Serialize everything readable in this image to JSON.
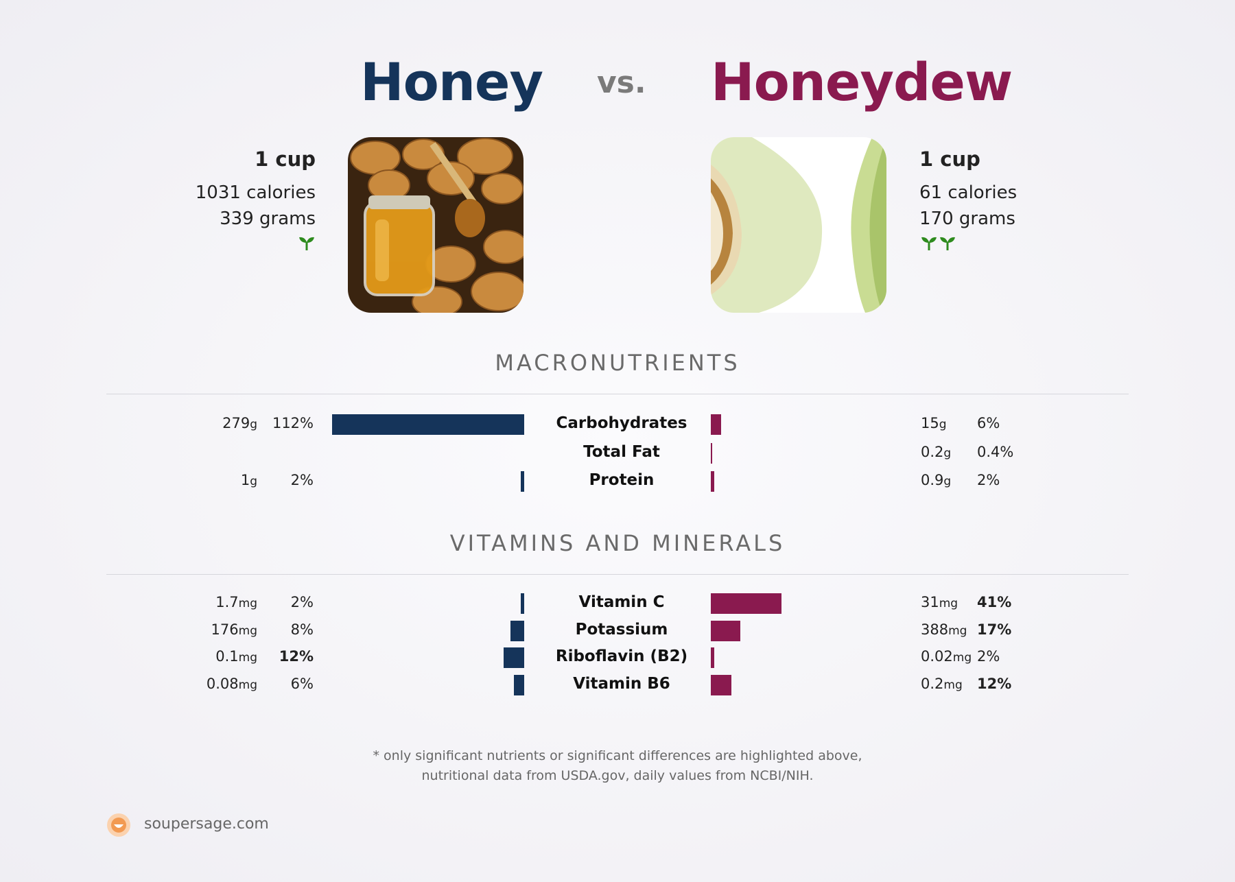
{
  "header": {
    "left_title": "Honey",
    "vs_label": "vs.",
    "right_title": "Honeydew"
  },
  "left_food": {
    "serving": "1 cup",
    "calories": "1031 calories",
    "grams": "339 grams",
    "sprout_count": 1,
    "image": "honey-photo"
  },
  "right_food": {
    "serving": "1 cup",
    "calories": "61 calories",
    "grams": "170 grams",
    "sprout_count": 2,
    "image": "honeydew-photo"
  },
  "sections": {
    "macros_title": "MACRONUTRIENTS",
    "vitamins_title": "VITAMINS AND MINERALS"
  },
  "colors": {
    "left": "#15345a",
    "right": "#8a1a4f",
    "sprout": "#2e8b1e"
  },
  "chart_data": {
    "type": "bar",
    "series": [
      {
        "name": "Honey"
      },
      {
        "name": "Honeydew"
      }
    ],
    "macronutrients": [
      {
        "name": "Carbohydrates",
        "left": {
          "amount": "279",
          "unit": "g",
          "pct": "112%",
          "pct_value": 112,
          "bold": false
        },
        "right": {
          "amount": "15",
          "unit": "g",
          "pct": "6%",
          "pct_value": 6,
          "bold": false
        }
      },
      {
        "name": "Total Fat",
        "left": {
          "amount": "",
          "unit": "",
          "pct": "",
          "pct_value": 0,
          "bold": false
        },
        "right": {
          "amount": "0.2",
          "unit": "g",
          "pct": "0.4%",
          "pct_value": 0.4,
          "bold": false
        }
      },
      {
        "name": "Protein",
        "left": {
          "amount": "1",
          "unit": "g",
          "pct": "2%",
          "pct_value": 2,
          "bold": false
        },
        "right": {
          "amount": "0.9",
          "unit": "g",
          "pct": "2%",
          "pct_value": 2,
          "bold": false
        }
      }
    ],
    "vitamins": [
      {
        "name": "Vitamin C",
        "left": {
          "amount": "1.7",
          "unit": "mg",
          "pct": "2%",
          "pct_value": 2,
          "bold": false
        },
        "right": {
          "amount": "31",
          "unit": "mg",
          "pct": "41%",
          "pct_value": 41,
          "bold": true
        }
      },
      {
        "name": "Potassium",
        "left": {
          "amount": "176",
          "unit": "mg",
          "pct": "8%",
          "pct_value": 8,
          "bold": false
        },
        "right": {
          "amount": "388",
          "unit": "mg",
          "pct": "17%",
          "pct_value": 17,
          "bold": true
        }
      },
      {
        "name": "Riboflavin (B2)",
        "left": {
          "amount": "0.1",
          "unit": "mg",
          "pct": "12%",
          "pct_value": 12,
          "bold": true
        },
        "right": {
          "amount": "0.02",
          "unit": "mg",
          "pct": "2%",
          "pct_value": 2,
          "bold": false
        }
      },
      {
        "name": "Vitamin B6",
        "left": {
          "amount": "0.08",
          "unit": "mg",
          "pct": "6%",
          "pct_value": 6,
          "bold": false
        },
        "right": {
          "amount": "0.2",
          "unit": "mg",
          "pct": "12%",
          "pct_value": 12,
          "bold": true
        }
      }
    ]
  },
  "footer": {
    "note_line1": "* only significant nutrients or significant differences are highlighted above,",
    "note_line2": "nutritional data from USDA.gov, daily values from NCBI/NIH.",
    "logo_icon": "soupersage-logo-icon",
    "site": "soupersage.com"
  }
}
